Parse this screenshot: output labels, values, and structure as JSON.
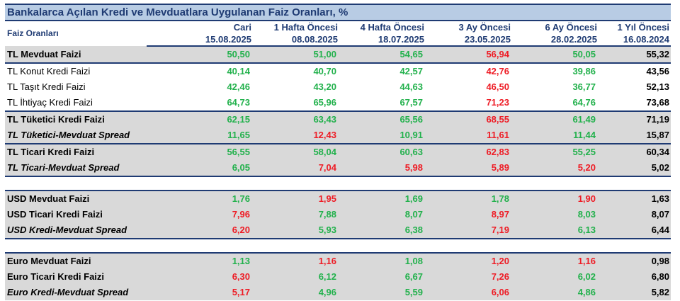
{
  "title": "Bankalarca Açılan Kredi ve Mevduatlara Uygulanan Faiz Oranları, %",
  "header": {
    "label": "Faiz Oranları",
    "columns": [
      "Cari",
      "1 Hafta Öncesi",
      "4 Hafta Öncesi",
      "3 Ay Öncesi",
      "6 Ay Öncesi",
      "1 Yıl Öncesi"
    ],
    "dates": [
      "15.08.2025",
      "08.08.2025",
      "18.07.2025",
      "23.05.2025",
      "28.02.2025",
      "16.08.2024"
    ]
  },
  "colors": {
    "green": "#22b14c",
    "red": "#ee1c25",
    "navy": "#1f3b73",
    "header_bg": "#b8cce4",
    "shade": "#d9d9d9"
  },
  "rows": [
    {
      "label": "TL Mevduat Faizi",
      "values": [
        "50,50",
        "51,00",
        "54,65",
        "56,94",
        "50,05",
        "55,32"
      ],
      "colors": [
        "g",
        "g",
        "g",
        "r",
        "g",
        "k"
      ]
    },
    {
      "label": "TL Konut Kredi Faizi",
      "values": [
        "40,14",
        "40,70",
        "42,57",
        "42,76",
        "39,86",
        "43,56"
      ],
      "colors": [
        "g",
        "g",
        "g",
        "r",
        "g",
        "k"
      ]
    },
    {
      "label": "TL Taşıt Kredi Faizi",
      "values": [
        "42,46",
        "43,20",
        "44,63",
        "46,50",
        "36,77",
        "52,13"
      ],
      "colors": [
        "g",
        "g",
        "g",
        "r",
        "g",
        "k"
      ]
    },
    {
      "label": "TL İhtiyaç Kredi Faizi",
      "values": [
        "64,73",
        "65,96",
        "67,57",
        "71,23",
        "64,76",
        "73,68"
      ],
      "colors": [
        "g",
        "g",
        "g",
        "r",
        "g",
        "k"
      ]
    },
    {
      "label": "TL Tüketici Kredi Faizi",
      "values": [
        "62,15",
        "63,43",
        "65,56",
        "68,55",
        "61,49",
        "71,19"
      ],
      "colors": [
        "g",
        "g",
        "g",
        "r",
        "g",
        "k"
      ]
    },
    {
      "label": "TL Tüketici-Mevduat Spread",
      "values": [
        "11,65",
        "12,43",
        "10,91",
        "11,61",
        "11,44",
        "15,87"
      ],
      "colors": [
        "g",
        "r",
        "g",
        "r",
        "g",
        "k"
      ]
    },
    {
      "label": "TL Ticari Kredi Faizi",
      "values": [
        "56,55",
        "58,04",
        "60,63",
        "62,83",
        "55,25",
        "60,34"
      ],
      "colors": [
        "g",
        "g",
        "g",
        "r",
        "g",
        "k"
      ]
    },
    {
      "label": "TL Ticari-Mevduat Spread",
      "values": [
        "6,05",
        "7,04",
        "5,98",
        "5,89",
        "5,20",
        "5,02"
      ],
      "colors": [
        "g",
        "r",
        "r",
        "r",
        "r",
        "k"
      ]
    },
    {
      "label": "USD Mevduat Faizi",
      "values": [
        "1,76",
        "1,95",
        "1,69",
        "1,78",
        "1,90",
        "1,63"
      ],
      "colors": [
        "g",
        "r",
        "g",
        "g",
        "r",
        "k"
      ]
    },
    {
      "label": "USD Ticari Kredi Faizi",
      "values": [
        "7,96",
        "7,88",
        "8,07",
        "8,97",
        "8,03",
        "8,07"
      ],
      "colors": [
        "r",
        "g",
        "g",
        "r",
        "g",
        "k"
      ]
    },
    {
      "label": "USD Kredi-Mevduat Spread",
      "values": [
        "6,20",
        "5,93",
        "6,38",
        "7,19",
        "6,13",
        "6,44"
      ],
      "colors": [
        "r",
        "g",
        "g",
        "r",
        "g",
        "k"
      ]
    },
    {
      "label": "Euro Mevduat Faizi",
      "values": [
        "1,13",
        "1,16",
        "1,08",
        "1,20",
        "1,16",
        "0,98"
      ],
      "colors": [
        "g",
        "r",
        "g",
        "r",
        "r",
        "k"
      ]
    },
    {
      "label": "Euro Ticari Kredi Faizi",
      "values": [
        "6,30",
        "6,12",
        "6,67",
        "7,26",
        "6,02",
        "6,80"
      ],
      "colors": [
        "r",
        "g",
        "g",
        "r",
        "g",
        "k"
      ]
    },
    {
      "label": "Euro Kredi-Mevduat Spread",
      "values": [
        "5,17",
        "4,96",
        "5,59",
        "6,06",
        "4,86",
        "5,82"
      ],
      "colors": [
        "r",
        "g",
        "g",
        "r",
        "g",
        "k"
      ]
    }
  ]
}
